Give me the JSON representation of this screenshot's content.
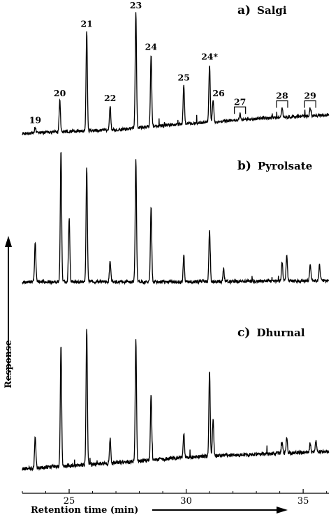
{
  "chart_data": {
    "type": "line",
    "xlabel": "Retention time (min)",
    "ylabel": "Response",
    "xlim": [
      23.0,
      36.1
    ],
    "x_ticks": [
      "25",
      "30",
      "35"
    ],
    "grid": false,
    "panels": [
      {
        "letter": "a)",
        "name": "Salgi",
        "baseline": [
          [
            23.0,
            0.01
          ],
          [
            27.0,
            0.04
          ],
          [
            30.0,
            0.09
          ],
          [
            33.0,
            0.13
          ],
          [
            36.0,
            0.16
          ]
        ],
        "peaks": [
          {
            "label": "19",
            "x": 23.55,
            "y": 0.06
          },
          {
            "label": "20",
            "x": 24.6,
            "y": 0.28
          },
          {
            "label": "21",
            "x": 25.75,
            "y": 0.85
          },
          {
            "label": "22",
            "x": 26.75,
            "y": 0.24
          },
          {
            "label": "23",
            "x": 27.85,
            "y": 1.0
          },
          {
            "label": "24",
            "x": 28.5,
            "y": 0.66
          },
          {
            "label": "25",
            "x": 29.9,
            "y": 0.41
          },
          {
            "label": "24*",
            "x": 31.0,
            "y": 0.58
          },
          {
            "label": "26",
            "x": 31.15,
            "y": 0.28
          },
          {
            "label": "27",
            "x": 32.3,
            "y": 0.17
          },
          {
            "label": "28",
            "x": 34.1,
            "y": 0.22
          },
          {
            "label": "29",
            "x": 35.3,
            "y": 0.22
          }
        ],
        "bracketed_labels": [
          "27",
          "28",
          "29"
        ]
      },
      {
        "letter": "b)",
        "name": "Pyrolsate",
        "baseline": [
          [
            23.0,
            0.0
          ],
          [
            30.0,
            0.0
          ],
          [
            36.0,
            0.01
          ]
        ],
        "peaks": [
          {
            "label": "",
            "x": 23.55,
            "y": 0.3
          },
          {
            "label": "",
            "x": 24.65,
            "y": 1.0
          },
          {
            "label": "",
            "x": 25.0,
            "y": 0.48
          },
          {
            "label": "",
            "x": 25.75,
            "y": 0.86
          },
          {
            "label": "",
            "x": 26.75,
            "y": 0.16
          },
          {
            "label": "",
            "x": 27.85,
            "y": 0.92
          },
          {
            "label": "",
            "x": 28.5,
            "y": 0.57
          },
          {
            "label": "",
            "x": 29.9,
            "y": 0.2
          },
          {
            "label": "",
            "x": 31.0,
            "y": 0.4
          },
          {
            "label": "",
            "x": 31.6,
            "y": 0.1
          },
          {
            "label": "",
            "x": 34.1,
            "y": 0.15
          },
          {
            "label": "",
            "x": 34.3,
            "y": 0.2
          },
          {
            "label": "",
            "x": 35.3,
            "y": 0.13
          },
          {
            "label": "",
            "x": 35.7,
            "y": 0.13
          }
        ]
      },
      {
        "letter": "c)",
        "name": "Dhurnal",
        "baseline": [
          [
            23.0,
            0.02
          ],
          [
            27.0,
            0.06
          ],
          [
            30.0,
            0.1
          ],
          [
            33.0,
            0.12
          ],
          [
            36.0,
            0.14
          ]
        ],
        "peaks": [
          {
            "label": "",
            "x": 23.55,
            "y": 0.24
          },
          {
            "label": "",
            "x": 24.65,
            "y": 0.88
          },
          {
            "label": "",
            "x": 25.75,
            "y": 1.0
          },
          {
            "label": "",
            "x": 26.75,
            "y": 0.23
          },
          {
            "label": "",
            "x": 27.85,
            "y": 0.91
          },
          {
            "label": "",
            "x": 28.5,
            "y": 0.53
          },
          {
            "label": "",
            "x": 29.9,
            "y": 0.27
          },
          {
            "label": "",
            "x": 31.0,
            "y": 0.7
          },
          {
            "label": "",
            "x": 31.15,
            "y": 0.36
          },
          {
            "label": "",
            "x": 34.1,
            "y": 0.2
          },
          {
            "label": "",
            "x": 34.3,
            "y": 0.24
          },
          {
            "label": "",
            "x": 35.3,
            "y": 0.2
          },
          {
            "label": "",
            "x": 35.55,
            "y": 0.22
          }
        ]
      }
    ]
  }
}
